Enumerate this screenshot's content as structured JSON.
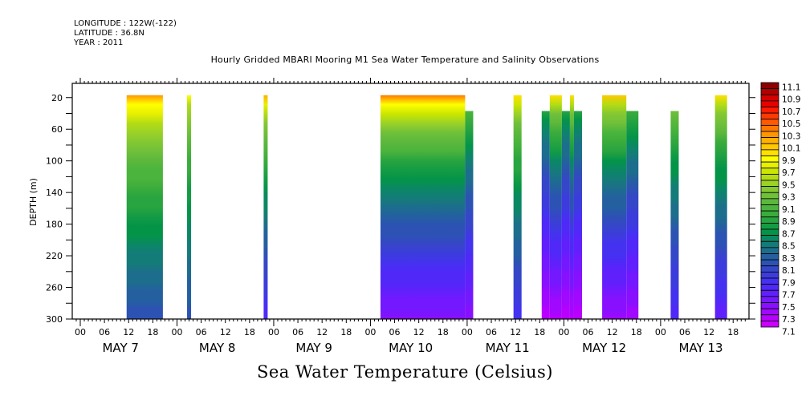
{
  "header": {
    "longitude": "LONGITUDE : 122W(-122)",
    "latitude": "LATITUDE : 36.8N",
    "year": "YEAR : 2011"
  },
  "chart_data": {
    "type": "heatmap",
    "title": "Hourly Gridded MBARI Mooring M1 Sea Water Temperature and Salinity Observations",
    "subtitle": "Sea Water Temperature (Celsius)",
    "xlabel": "",
    "ylabel": "DEPTH (m)",
    "x_units": "hours since May 7 00:00 (2011)",
    "xlim": [
      -2,
      168
    ],
    "ylim": [
      300,
      0
    ],
    "y_ticks": [
      20,
      60,
      100,
      140,
      180,
      220,
      260,
      300
    ],
    "x_hour_tick_labels": [
      "00",
      "06",
      "12",
      "18"
    ],
    "x_days": [
      "MAY  7",
      "MAY  8",
      "MAY  9",
      "MAY 10",
      "MAY 11",
      "MAY 12",
      "MAY 13"
    ],
    "colorbar": {
      "min": 7.1,
      "max": 11.1,
      "step": 0.1,
      "labels": [
        "11.1",
        "10.9",
        "10.7",
        "10.5",
        "10.3",
        "10.1",
        "9.9",
        "9.7",
        "9.5",
        "9.3",
        "9.1",
        "8.9",
        "8.7",
        "8.5",
        "8.3",
        "8.1",
        "7.9",
        "7.7",
        "7.5",
        "7.3",
        "7.1"
      ],
      "colors": [
        "#8b0000",
        "#b00000",
        "#d40000",
        "#e80000",
        "#ff1a00",
        "#ff3a00",
        "#ff5a00",
        "#ff7800",
        "#ff9600",
        "#ffb000",
        "#ffc800",
        "#ffe000",
        "#ffff00",
        "#e6f000",
        "#cce600",
        "#b4dc14",
        "#9ad228",
        "#84c832",
        "#70c03a",
        "#5cb83c",
        "#4ab43c",
        "#3aac3c",
        "#28a440",
        "#149c44",
        "#049448",
        "#0a8864",
        "#147c78",
        "#1c6e8c",
        "#2460a0",
        "#2c52b4",
        "#3646c8",
        "#3c3cdc",
        "#4432f0",
        "#5028f8",
        "#6020fc",
        "#7418ff",
        "#8810ff",
        "#a008ff",
        "#b800ff",
        "#cc00ff"
      ]
    },
    "segments": [
      {
        "day": "MAY 7",
        "start_hour": 11.5,
        "end_hour": 20.5,
        "top_depth": 20,
        "bottom_depth": 300,
        "surface_temp": 10.3,
        "bottom_temp": 8.1
      },
      {
        "day": "MAY 8",
        "start_hour": 26.5,
        "end_hour": 27.5,
        "top_depth": 20,
        "bottom_depth": 300,
        "surface_temp": 9.9,
        "bottom_temp": 8.1
      },
      {
        "day": "MAY 8",
        "start_hour": 45.5,
        "end_hour": 46.5,
        "top_depth": 20,
        "bottom_depth": 300,
        "surface_temp": 10.2,
        "bottom_temp": 7.7
      },
      {
        "day": "MAY 10",
        "start_hour": 74.5,
        "end_hour": 95.5,
        "top_depth": 20,
        "bottom_depth": 300,
        "surface_temp": 10.4,
        "bottom_temp": 7.4
      },
      {
        "day": "MAY 10",
        "start_hour": 95.5,
        "end_hour": 97.5,
        "top_depth": 40,
        "bottom_depth": 300,
        "surface_temp": 9.6,
        "bottom_temp": 7.4
      },
      {
        "day": "MAY 11",
        "start_hour": 107.5,
        "end_hour": 109.5,
        "top_depth": 20,
        "bottom_depth": 300,
        "surface_temp": 10.0,
        "bottom_temp": 7.8
      },
      {
        "day": "MAY 11",
        "start_hour": 114.5,
        "end_hour": 116.5,
        "top_depth": 40,
        "bottom_depth": 300,
        "surface_temp": 9.3,
        "bottom_temp": 7.2
      },
      {
        "day": "MAY 11",
        "start_hour": 116.5,
        "end_hour": 119.5,
        "top_depth": 20,
        "bottom_depth": 300,
        "surface_temp": 10.0,
        "bottom_temp": 7.2
      },
      {
        "day": "MAY 11",
        "start_hour": 119.5,
        "end_hour": 121.5,
        "top_depth": 40,
        "bottom_depth": 300,
        "surface_temp": 9.3,
        "bottom_temp": 7.2
      },
      {
        "day": "MAY 12",
        "start_hour": 121.5,
        "end_hour": 122.5,
        "top_depth": 20,
        "bottom_depth": 300,
        "surface_temp": 10.0,
        "bottom_temp": 7.2
      },
      {
        "day": "MAY 12",
        "start_hour": 122.5,
        "end_hour": 124.5,
        "top_depth": 40,
        "bottom_depth": 300,
        "surface_temp": 9.3,
        "bottom_temp": 7.2
      },
      {
        "day": "MAY 12",
        "start_hour": 129.5,
        "end_hour": 135.5,
        "top_depth": 20,
        "bottom_depth": 300,
        "surface_temp": 10.1,
        "bottom_temp": 7.3
      },
      {
        "day": "MAY 12",
        "start_hour": 135.5,
        "end_hour": 138.5,
        "top_depth": 40,
        "bottom_depth": 300,
        "surface_temp": 9.5,
        "bottom_temp": 7.3
      },
      {
        "day": "MAY 13",
        "start_hour": 146.5,
        "end_hour": 148.5,
        "top_depth": 40,
        "bottom_depth": 300,
        "surface_temp": 9.7,
        "bottom_temp": 7.7
      },
      {
        "day": "MAY 13",
        "start_hour": 157.5,
        "end_hour": 160.5,
        "top_depth": 20,
        "bottom_depth": 300,
        "surface_temp": 10.0,
        "bottom_temp": 7.6
      }
    ]
  }
}
